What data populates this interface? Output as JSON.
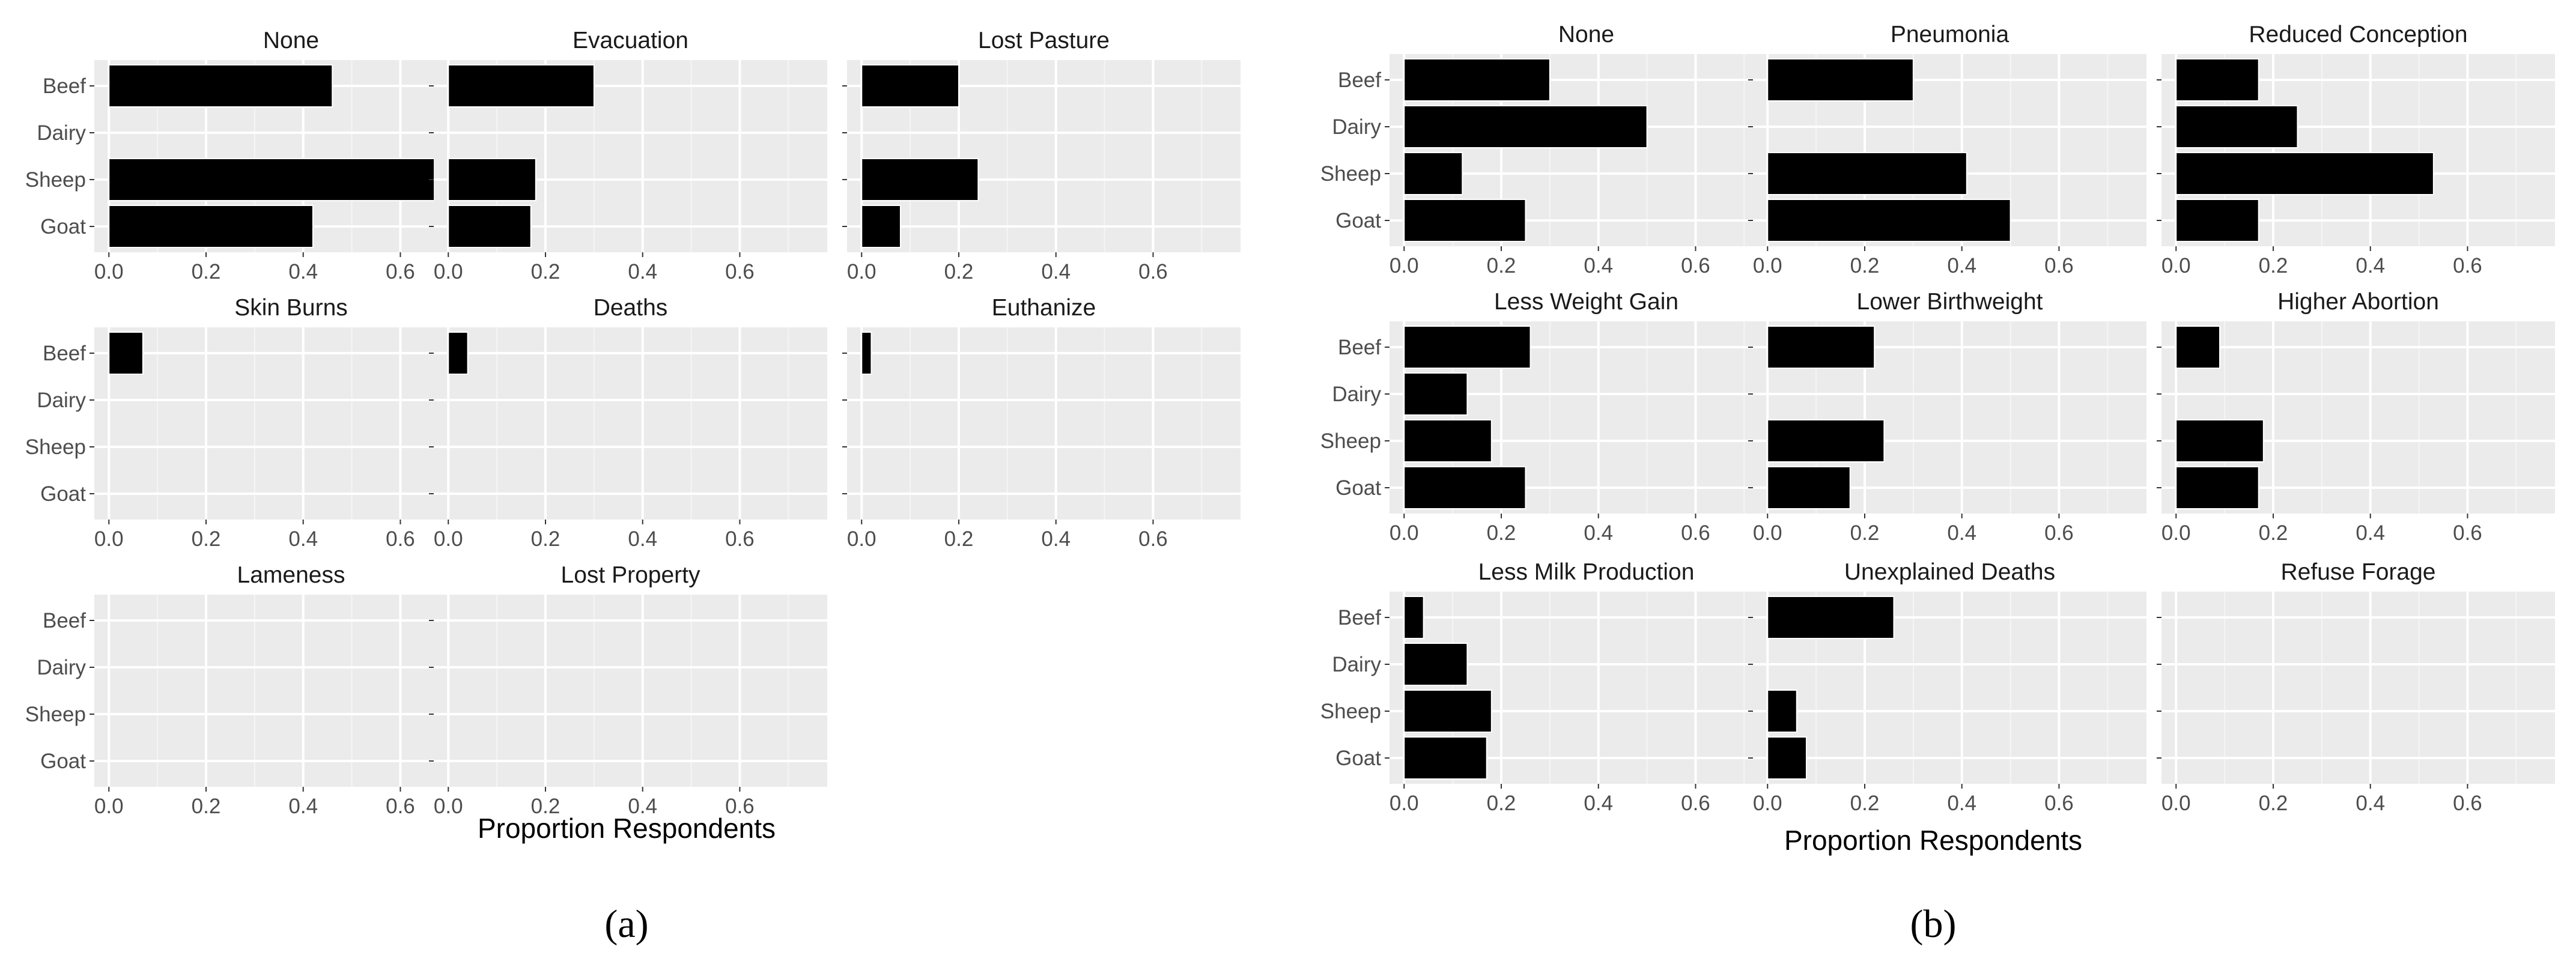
{
  "chart_data": [
    {
      "type": "bar",
      "orientation": "horizontal",
      "panel_label": "(a)",
      "xlabel": "Proportion Respondents",
      "ylabel": "",
      "categories": [
        "Beef",
        "Dairy",
        "Sheep",
        "Goat"
      ],
      "x_ticks": [
        "0.0",
        "0.2",
        "0.4",
        "0.6"
      ],
      "xlim": [
        -0.03,
        0.78
      ],
      "grid": true,
      "facets": [
        {
          "title": "None",
          "values": [
            0.46,
            0,
            0.7,
            0.42
          ]
        },
        {
          "title": "Evacuation",
          "values": [
            0.3,
            0,
            0.18,
            0.17
          ]
        },
        {
          "title": "Lost Pasture",
          "values": [
            0.2,
            0,
            0.24,
            0.08
          ]
        },
        {
          "title": "Skin Burns",
          "values": [
            0.07,
            0,
            0,
            0
          ]
        },
        {
          "title": "Deaths",
          "values": [
            0.04,
            0,
            0,
            0
          ]
        },
        {
          "title": "Euthanize",
          "values": [
            0.02,
            0,
            0,
            0
          ]
        },
        {
          "title": "Lameness",
          "values": [
            0,
            0,
            0,
            0
          ]
        },
        {
          "title": "Lost Property",
          "values": [
            0,
            0,
            0,
            0
          ]
        }
      ]
    },
    {
      "type": "bar",
      "orientation": "horizontal",
      "panel_label": "(b)",
      "xlabel": "Proportion Respondents",
      "ylabel": "",
      "categories": [
        "Beef",
        "Dairy",
        "Sheep",
        "Goat"
      ],
      "x_ticks": [
        "0.0",
        "0.2",
        "0.4",
        "0.6"
      ],
      "xlim": [
        -0.03,
        0.78
      ],
      "grid": true,
      "facets": [
        {
          "title": "None",
          "values": [
            0.3,
            0.5,
            0.12,
            0.25
          ]
        },
        {
          "title": "Pneumonia",
          "values": [
            0.3,
            0,
            0.41,
            0.5
          ]
        },
        {
          "title": "Reduced Conception",
          "values": [
            0.17,
            0.25,
            0.53,
            0.17
          ]
        },
        {
          "title": "Less Weight Gain",
          "values": [
            0.26,
            0.13,
            0.18,
            0.25
          ]
        },
        {
          "title": "Lower Birthweight",
          "values": [
            0.22,
            0,
            0.24,
            0.17
          ]
        },
        {
          "title": "Higher Abortion",
          "values": [
            0.09,
            0,
            0.18,
            0.17
          ]
        },
        {
          "title": "Less Milk Production",
          "values": [
            0.04,
            0.13,
            0.18,
            0.17
          ]
        },
        {
          "title": "Unexplained Deaths",
          "values": [
            0.26,
            0,
            0.06,
            0.08
          ]
        },
        {
          "title": "Refuse Forage",
          "values": [
            0,
            0,
            0,
            0
          ]
        }
      ]
    }
  ],
  "colors": {
    "panel_background": "#ebebeb",
    "grid_major": "#ffffff",
    "grid_minor": "#f5f5f5",
    "bar_fill": "#000000",
    "bar_outline": "#ffffff"
  }
}
